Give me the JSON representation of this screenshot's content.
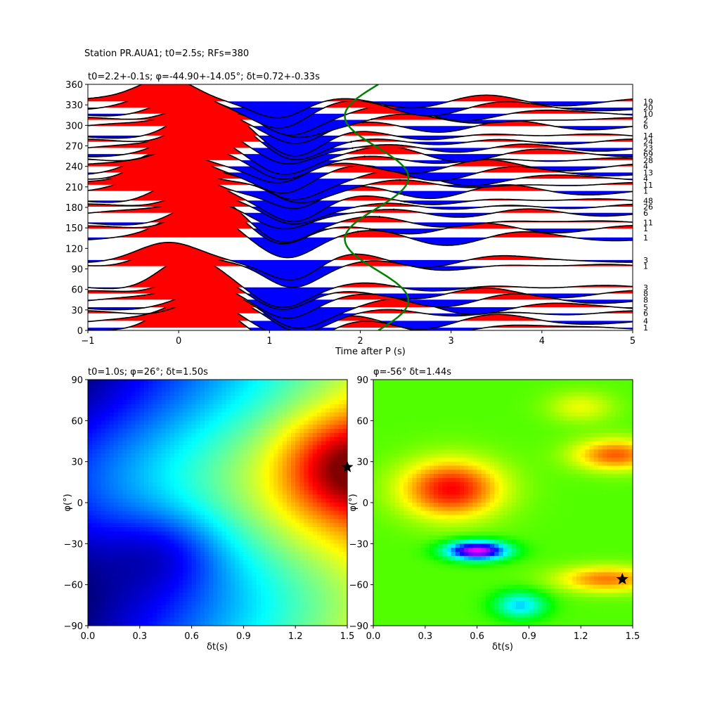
{
  "figure": {
    "suptitle": "Station PR.AUA1; t0=2.5s; RFs=380"
  },
  "chart_data": [
    {
      "type": "line",
      "title": "t0=2.2+-0.1s; φ=-44.90+-14.05°; δt=0.72+-0.33s",
      "xlabel": "Time after P (s)",
      "ylabel": "",
      "xlim": [
        -1,
        5
      ],
      "ylim": [
        0,
        360
      ],
      "xticks": [
        "−1",
        "0",
        "1",
        "2",
        "3",
        "4",
        "5"
      ],
      "yticks": [
        "0",
        "30",
        "60",
        "90",
        "120",
        "150",
        "180",
        "210",
        "240",
        "270",
        "300",
        "330",
        "360"
      ],
      "bin_counts": [
        {
          "baz": 335,
          "count": "19"
        },
        {
          "baz": 326,
          "count": "20"
        },
        {
          "baz": 317,
          "count": "10"
        },
        {
          "baz": 308,
          "count": "2"
        },
        {
          "baz": 299,
          "count": "6"
        },
        {
          "baz": 285,
          "count": "14"
        },
        {
          "baz": 276,
          "count": "24"
        },
        {
          "baz": 267,
          "count": "23"
        },
        {
          "baz": 258,
          "count": "69"
        },
        {
          "baz": 249,
          "count": "28"
        },
        {
          "baz": 240,
          "count": "4"
        },
        {
          "baz": 231,
          "count": "13"
        },
        {
          "baz": 222,
          "count": "4"
        },
        {
          "baz": 213,
          "count": "11"
        },
        {
          "baz": 204,
          "count": "1"
        },
        {
          "baz": 190,
          "count": "48"
        },
        {
          "baz": 181,
          "count": "26"
        },
        {
          "baz": 172,
          "count": "6"
        },
        {
          "baz": 158,
          "count": "11"
        },
        {
          "baz": 149,
          "count": "1"
        },
        {
          "baz": 136,
          "count": "1"
        },
        {
          "baz": 103,
          "count": "3"
        },
        {
          "baz": 94,
          "count": "1"
        },
        {
          "baz": 63,
          "count": "3"
        },
        {
          "baz": 54,
          "count": "8"
        },
        {
          "baz": 45,
          "count": "8"
        },
        {
          "baz": 34,
          "count": "5"
        },
        {
          "baz": 25,
          "count": "6"
        },
        {
          "baz": 14,
          "count": "4"
        },
        {
          "baz": 4,
          "count": "1"
        }
      ],
      "green_curve": {
        "color": "#008000",
        "description_values": {
          "x_center": 2.18,
          "amplitude": 0.35,
          "period_deg": 180,
          "phase_deg": -44.9
        }
      }
    },
    {
      "type": "heatmap",
      "title": "t0=1.0s; φ=26°; δt=1.50s",
      "xlabel": "δt(s)",
      "ylabel": "φ(°)",
      "xlim": [
        0,
        1.5
      ],
      "ylim": [
        -90,
        90
      ],
      "xticks": [
        "0.0",
        "0.3",
        "0.6",
        "0.9",
        "1.2",
        "1.5"
      ],
      "yticks": [
        "−90",
        "−60",
        "−30",
        "0",
        "30",
        "60",
        "90"
      ],
      "best": {
        "dt": 1.5,
        "phi": 26
      },
      "colormap": "jet"
    },
    {
      "type": "heatmap",
      "title": "φ=-56° δt=1.44s",
      "xlabel": "δt(s)",
      "ylabel": "φ(°)",
      "xlim": [
        0,
        1.5
      ],
      "ylim": [
        -90,
        90
      ],
      "xticks": [
        "0.0",
        "0.3",
        "0.6",
        "0.9",
        "1.2",
        "1.5"
      ],
      "yticks": [
        "−90",
        "−60",
        "−30",
        "0",
        "30",
        "60",
        "90"
      ],
      "best": {
        "dt": 1.44,
        "phi": -56
      },
      "colormap": "hsv"
    }
  ]
}
